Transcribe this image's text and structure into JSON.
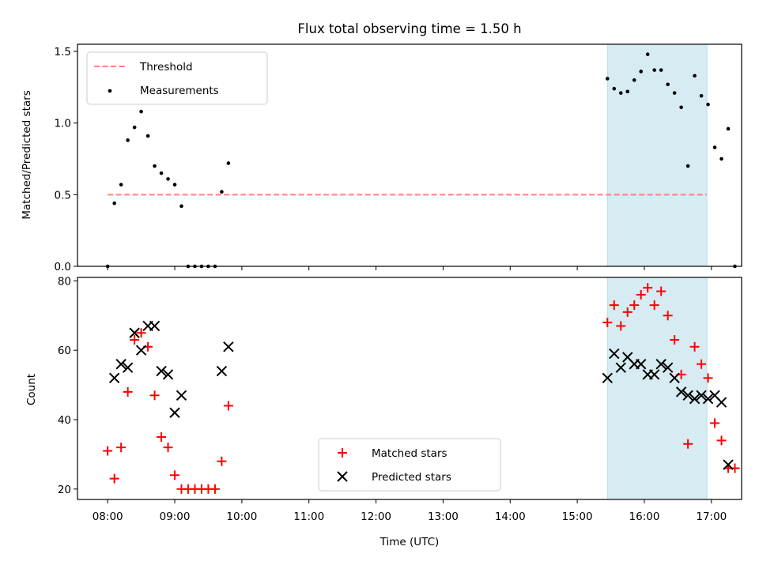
{
  "chart_data": [
    {
      "type": "scatter",
      "title": "Flux total observing time = 1.50 h",
      "xlabel": "",
      "ylabel": "Matched/Predicted stars",
      "xlim": [
        "07:33",
        "17:27"
      ],
      "ylim": [
        0,
        1.55
      ],
      "yticks": [
        0.0,
        0.5,
        1.0,
        1.5
      ],
      "ytick_labels": [
        "0.0",
        "0.5",
        "1.0",
        "1.5"
      ],
      "shaded_span": {
        "from": "15:27",
        "to": "16:56",
        "color": "#add8e6"
      },
      "legend": {
        "placement": "upper-left",
        "entries": [
          "Threshold",
          "Measurements"
        ]
      },
      "series": [
        {
          "name": "Threshold",
          "style": "dashed-line",
          "color": "#ff7f7f",
          "points": [
            [
              "08:00",
              0.5
            ],
            [
              "16:56",
              0.5
            ]
          ]
        },
        {
          "name": "Measurements",
          "style": "dot",
          "color": "#000000",
          "points": [
            [
              "08:00",
              0.0
            ],
            [
              "08:06",
              0.44
            ],
            [
              "08:12",
              0.57
            ],
            [
              "08:18",
              0.88
            ],
            [
              "08:24",
              0.97
            ],
            [
              "08:30",
              1.08
            ],
            [
              "08:36",
              0.91
            ],
            [
              "08:42",
              0.7
            ],
            [
              "08:48",
              0.65
            ],
            [
              "08:54",
              0.61
            ],
            [
              "09:00",
              0.57
            ],
            [
              "09:06",
              0.42
            ],
            [
              "09:12",
              0.0
            ],
            [
              "09:18",
              0.0
            ],
            [
              "09:24",
              0.0
            ],
            [
              "09:30",
              0.0
            ],
            [
              "09:36",
              0.0
            ],
            [
              "09:42",
              0.52
            ],
            [
              "09:48",
              0.72
            ],
            [
              "15:27",
              1.31
            ],
            [
              "15:33",
              1.24
            ],
            [
              "15:39",
              1.21
            ],
            [
              "15:45",
              1.22
            ],
            [
              "15:51",
              1.3
            ],
            [
              "15:57",
              1.36
            ],
            [
              "16:03",
              1.48
            ],
            [
              "16:09",
              1.37
            ],
            [
              "16:15",
              1.37
            ],
            [
              "16:21",
              1.27
            ],
            [
              "16:27",
              1.21
            ],
            [
              "16:33",
              1.11
            ],
            [
              "16:39",
              0.7
            ],
            [
              "16:45",
              1.33
            ],
            [
              "16:51",
              1.19
            ],
            [
              "16:57",
              1.13
            ],
            [
              "17:03",
              0.83
            ],
            [
              "17:09",
              0.75
            ],
            [
              "17:15",
              0.96
            ],
            [
              "17:21",
              0.0
            ]
          ]
        }
      ]
    },
    {
      "type": "scatter",
      "title": "",
      "xlabel": "Time (UTC)",
      "ylabel": "Count",
      "xlim": [
        "07:33",
        "17:27"
      ],
      "ylim": [
        17,
        81
      ],
      "yticks": [
        20,
        40,
        60,
        80
      ],
      "ytick_labels": [
        "20",
        "40",
        "60",
        "80"
      ],
      "xticks": [
        "08:00",
        "09:00",
        "10:00",
        "11:00",
        "12:00",
        "13:00",
        "14:00",
        "15:00",
        "16:00",
        "17:00"
      ],
      "xtick_labels": [
        "08:00",
        "09:00",
        "10:00",
        "11:00",
        "12:00",
        "13:00",
        "14:00",
        "15:00",
        "16:00",
        "17:00"
      ],
      "shaded_span": {
        "from": "15:27",
        "to": "16:56",
        "color": "#add8e6"
      },
      "legend": {
        "placement": "lower-center",
        "entries": [
          "Matched stars",
          "Predicted stars"
        ]
      },
      "series": [
        {
          "name": "Matched stars",
          "marker": "+",
          "color": "#ff0000",
          "points": [
            [
              "08:00",
              31
            ],
            [
              "08:06",
              23
            ],
            [
              "08:12",
              32
            ],
            [
              "08:18",
              48
            ],
            [
              "08:24",
              63
            ],
            [
              "08:30",
              65
            ],
            [
              "08:36",
              61
            ],
            [
              "08:42",
              47
            ],
            [
              "08:48",
              35
            ],
            [
              "08:54",
              32
            ],
            [
              "09:00",
              24
            ],
            [
              "09:06",
              20
            ],
            [
              "09:12",
              20
            ],
            [
              "09:18",
              20
            ],
            [
              "09:24",
              20
            ],
            [
              "09:30",
              20
            ],
            [
              "09:36",
              20
            ],
            [
              "09:42",
              28
            ],
            [
              "09:48",
              44
            ],
            [
              "15:27",
              68
            ],
            [
              "15:33",
              73
            ],
            [
              "15:39",
              67
            ],
            [
              "15:45",
              71
            ],
            [
              "15:51",
              73
            ],
            [
              "15:57",
              76
            ],
            [
              "16:03",
              78
            ],
            [
              "16:09",
              73
            ],
            [
              "16:15",
              77
            ],
            [
              "16:21",
              70
            ],
            [
              "16:27",
              63
            ],
            [
              "16:33",
              53
            ],
            [
              "16:39",
              33
            ],
            [
              "16:45",
              61
            ],
            [
              "16:51",
              56
            ],
            [
              "16:57",
              52
            ],
            [
              "17:03",
              39
            ],
            [
              "17:09",
              34
            ],
            [
              "17:15",
              26
            ],
            [
              "17:21",
              26
            ]
          ]
        },
        {
          "name": "Predicted stars",
          "marker": "x",
          "color": "#000000",
          "points": [
            [
              "08:06",
              52
            ],
            [
              "08:12",
              56
            ],
            [
              "08:18",
              55
            ],
            [
              "08:24",
              65
            ],
            [
              "08:30",
              60
            ],
            [
              "08:36",
              67
            ],
            [
              "08:42",
              67
            ],
            [
              "08:48",
              54
            ],
            [
              "08:54",
              53
            ],
            [
              "09:00",
              42
            ],
            [
              "09:06",
              47
            ],
            [
              "09:42",
              54
            ],
            [
              "09:48",
              61
            ],
            [
              "15:27",
              52
            ],
            [
              "15:33",
              59
            ],
            [
              "15:39",
              55
            ],
            [
              "15:45",
              58
            ],
            [
              "15:51",
              56
            ],
            [
              "15:57",
              56
            ],
            [
              "16:03",
              53
            ],
            [
              "16:09",
              53
            ],
            [
              "16:15",
              56
            ],
            [
              "16:21",
              55
            ],
            [
              "16:27",
              52
            ],
            [
              "16:33",
              48
            ],
            [
              "16:39",
              47
            ],
            [
              "16:45",
              46
            ],
            [
              "16:51",
              47
            ],
            [
              "16:57",
              46
            ],
            [
              "17:03",
              47
            ],
            [
              "17:09",
              45
            ],
            [
              "17:15",
              27
            ]
          ]
        }
      ]
    }
  ]
}
